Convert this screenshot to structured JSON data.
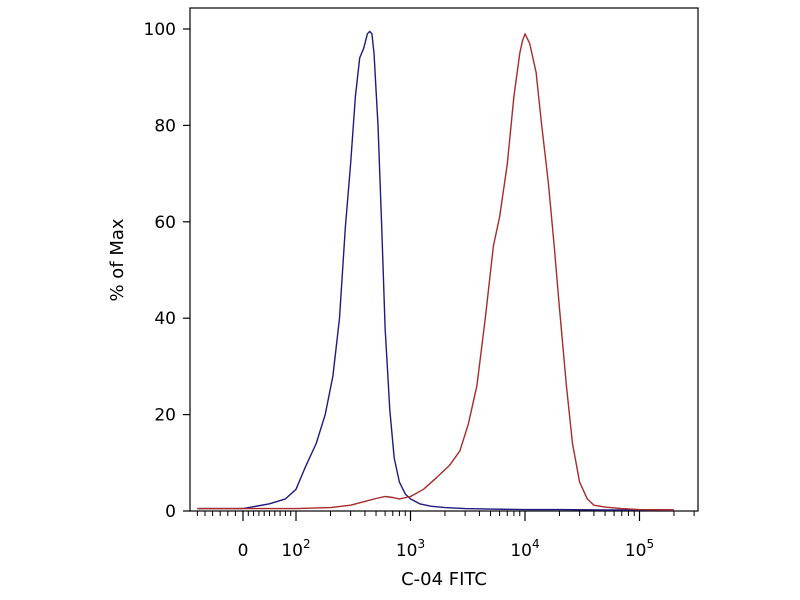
{
  "chart_data": {
    "type": "line",
    "title": "",
    "xlabel": "C-04 FITC",
    "ylabel": "% of Max",
    "x_scale": "biexponential",
    "xlim": [
      -70,
      220000
    ],
    "ylim": [
      0,
      104
    ],
    "y_ticks": [
      {
        "value": 0,
        "label": "0"
      },
      {
        "value": 20,
        "label": "20"
      },
      {
        "value": 40,
        "label": "40"
      },
      {
        "value": 60,
        "label": "60"
      },
      {
        "value": 80,
        "label": "80"
      },
      {
        "value": 100,
        "label": "100"
      }
    ],
    "x_ticks": [
      {
        "value": 0,
        "base": "0",
        "exp": ""
      },
      {
        "value": 100,
        "base": "10",
        "exp": "2"
      },
      {
        "value": 1000,
        "base": "10",
        "exp": "3"
      },
      {
        "value": 10000,
        "base": "10",
        "exp": "4"
      },
      {
        "value": 100000,
        "base": "10",
        "exp": "5"
      }
    ],
    "grid": false,
    "legend": "none",
    "series": [
      {
        "color": "#1f1a80",
        "x": [
          -60,
          0,
          50,
          80,
          100,
          120,
          150,
          180,
          210,
          240,
          270,
          300,
          330,
          360,
          390,
          420,
          440,
          460,
          480,
          520,
          560,
          600,
          660,
          720,
          800,
          900,
          1000,
          1200,
          1500,
          2000,
          3000,
          5000,
          10000,
          20000,
          50000,
          100000,
          200000
        ],
        "y": [
          0.5,
          0.5,
          1.5,
          2.5,
          4.5,
          9,
          14,
          20,
          28,
          40,
          59,
          72,
          86,
          94,
          96,
          99,
          99.5,
          99,
          95,
          80,
          59,
          38,
          21,
          11,
          6,
          3.5,
          2.5,
          1.5,
          1,
          0.7,
          0.5,
          0.4,
          0.3,
          0.3,
          0.2,
          0.2,
          0.2
        ]
      },
      {
        "color": "#a82a2a",
        "x": [
          -60,
          0,
          100,
          200,
          300,
          400,
          500,
          600,
          700,
          800,
          1000,
          1300,
          1700,
          2200,
          2700,
          3200,
          3800,
          4500,
          5300,
          6000,
          7000,
          8000,
          9000,
          9500,
          10000,
          11000,
          12500,
          14000,
          16000,
          18000,
          20000,
          23000,
          26000,
          30000,
          35000,
          40000,
          50000,
          70000,
          100000,
          200000
        ],
        "y": [
          0.5,
          0.5,
          0.5,
          0.7,
          1.2,
          2,
          2.6,
          3,
          2.8,
          2.5,
          3,
          4.5,
          7,
          9.5,
          12.5,
          18,
          26,
          40,
          55,
          61,
          72,
          86,
          95,
          97.5,
          99,
          97,
          91,
          80,
          68,
          55,
          42,
          26,
          14,
          6,
          2.5,
          1.2,
          0.8,
          0.5,
          0.3,
          0.2
        ]
      }
    ]
  }
}
